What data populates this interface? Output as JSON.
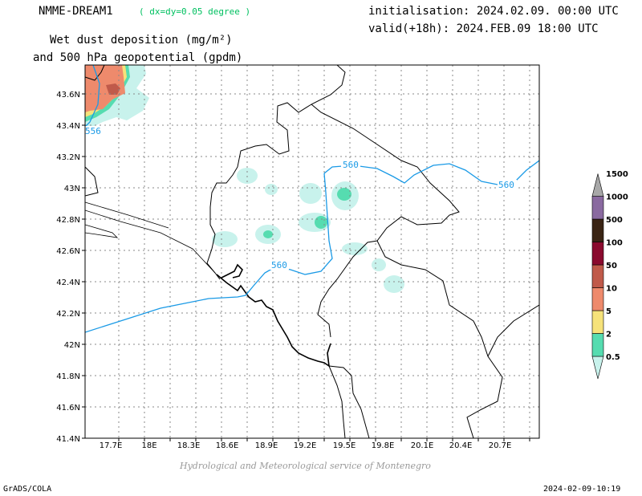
{
  "header": {
    "model": "NMME-DREAM1",
    "resolution": "( dx=dy=0.05 degree )",
    "variable_line1": "Wet dust deposition (mg/m²)",
    "variable_line2": "and 500 hPa geopotential (gpdm)",
    "init": "initialisation: 2024.02.09. 00:00 UTC",
    "valid": "valid(+18h): 2024.FEB.09 18:00 UTC"
  },
  "footer": {
    "credit": "Hydrological and Meteorological service of Montenegro",
    "left": "GrADS/COLA",
    "right": "2024-02-09-10:19"
  },
  "axes": {
    "lon_ticks": [
      "17.7E",
      "18E",
      "18.3E",
      "18.6E",
      "18.9E",
      "19.2E",
      "19.5E",
      "19.8E",
      "20.1E",
      "20.4E",
      "20.7E"
    ],
    "lat_ticks": [
      "43.6N",
      "43.4N",
      "43.2N",
      "43N",
      "42.8N",
      "42.6N",
      "42.4N",
      "42.2N",
      "42N",
      "41.8N",
      "41.6N",
      "41.4N"
    ]
  },
  "contours": {
    "labels": [
      "556",
      "560",
      "560",
      "560"
    ]
  },
  "colorbar": {
    "levels": [
      "0.5",
      "2",
      "5",
      "10",
      "50",
      "100",
      "500",
      "1000",
      "1500"
    ],
    "colors": [
      "#c8f2ec",
      "#56dcb0",
      "#f6e27a",
      "#ee8a6c",
      "#c05a4a",
      "#8a0a2e",
      "#3a2414",
      "#8a6aa0",
      "#a8a8a8"
    ]
  }
}
